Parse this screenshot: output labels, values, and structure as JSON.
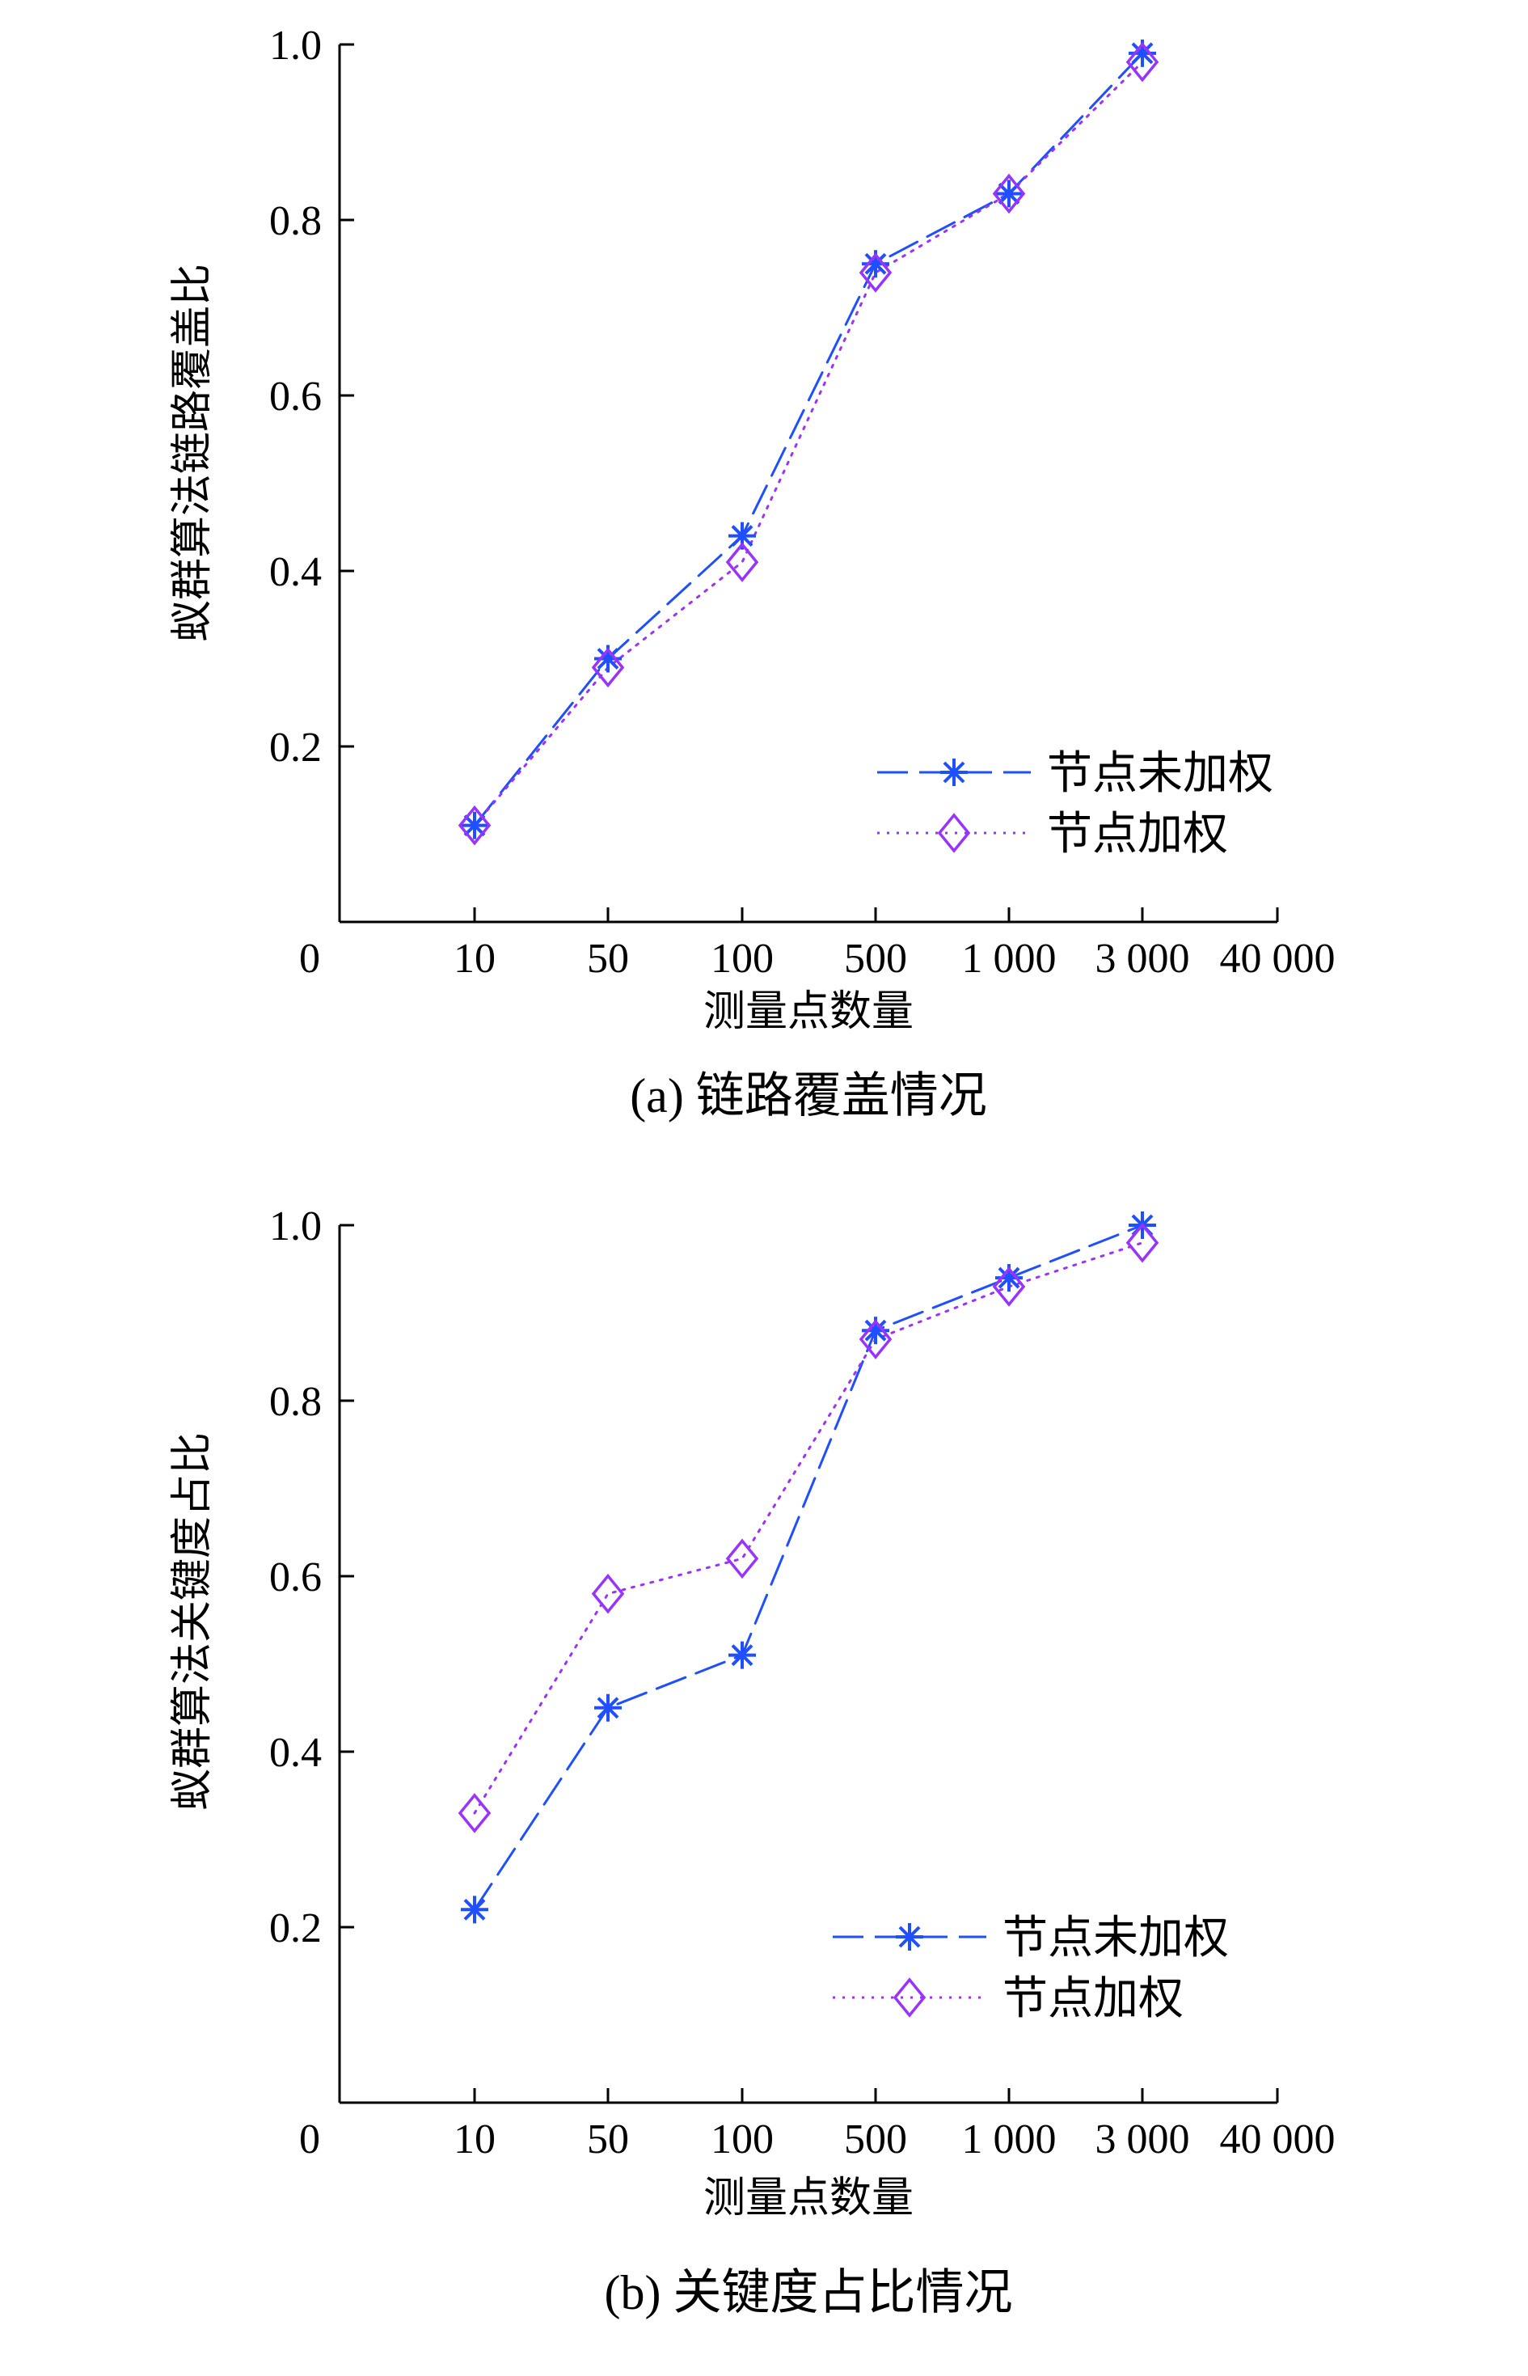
{
  "chart_data": [
    {
      "id": "a",
      "type": "line",
      "caption": "(a) 链路覆盖情况",
      "xlabel": "测量点数量",
      "ylabel": "蚁群算法链路覆盖比",
      "x_tick_labels": [
        "0",
        "10",
        "50",
        "100",
        "500",
        "1 000",
        "3 000",
        "40 000"
      ],
      "categories": [
        "10",
        "50",
        "100",
        "500",
        "1 000",
        "3 000"
      ],
      "y_tick_labels": [
        "0.2",
        "0.4",
        "0.6",
        "0.8",
        "1.0"
      ],
      "ylim": [
        0,
        1.0
      ],
      "grid": false,
      "legend_position": "bottom-right",
      "series": [
        {
          "name": "节点未加权",
          "color": "#1f4fff",
          "marker": "asterisk",
          "line_style": "dashed",
          "values": [
            0.11,
            0.3,
            0.44,
            0.75,
            0.83,
            0.99
          ]
        },
        {
          "name": "节点加权",
          "color": "#9933ff",
          "marker": "diamond",
          "line_style": "dotted",
          "values": [
            0.11,
            0.29,
            0.41,
            0.74,
            0.83,
            0.98
          ]
        }
      ]
    },
    {
      "id": "b",
      "type": "line",
      "caption": "(b) 关键度占比情况",
      "xlabel": "测量点数量",
      "ylabel": "蚁群算法关键度占比",
      "x_tick_labels": [
        "0",
        "10",
        "50",
        "100",
        "500",
        "1 000",
        "3 000",
        "40 000"
      ],
      "categories": [
        "10",
        "50",
        "100",
        "500",
        "1 000",
        "3 000"
      ],
      "y_tick_labels": [
        "0.2",
        "0.4",
        "0.6",
        "0.8",
        "1.0"
      ],
      "ylim": [
        0,
        1.0
      ],
      "grid": false,
      "legend_position": "bottom-right",
      "series": [
        {
          "name": "节点未加权",
          "color": "#1f4fff",
          "marker": "asterisk",
          "line_style": "dashed",
          "values": [
            0.22,
            0.45,
            0.51,
            0.88,
            0.94,
            1.0
          ]
        },
        {
          "name": "节点加权",
          "color": "#9933ff",
          "marker": "diamond",
          "line_style": "dotted",
          "values": [
            0.33,
            0.58,
            0.62,
            0.87,
            0.93,
            0.98
          ]
        }
      ]
    }
  ]
}
